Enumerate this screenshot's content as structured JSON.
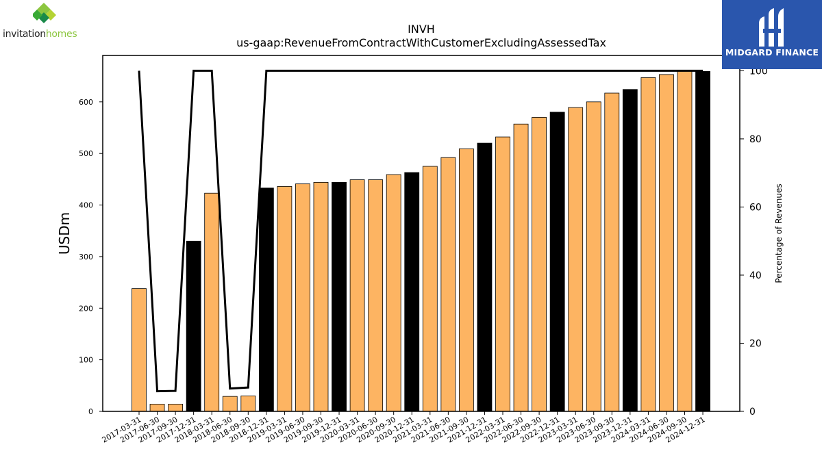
{
  "logo_left": {
    "word_main": "invitation",
    "word_accent": "homes"
  },
  "logo_right": {
    "brand": "MIDGARD FINANCE"
  },
  "colors": {
    "bar_regular": "#fdb462",
    "bar_q4": "#000000",
    "line": "#000000"
  },
  "chart_data": {
    "type": "bar",
    "title": "INVH",
    "subtitle": "us-gaap:RevenueFromContractWithCustomerExcludingAssessedTax",
    "ylabel": "USDm",
    "y2label": "Percentage of Revenues",
    "ylim": [
      0,
      690
    ],
    "y2lim": [
      0,
      104.5
    ],
    "yticks": [
      0,
      100,
      200,
      300,
      400,
      500,
      600
    ],
    "y2ticks": [
      0,
      20,
      40,
      60,
      80,
      100
    ],
    "categories": [
      "2017-03-31",
      "2017-06-30",
      "2017-09-30",
      "2017-12-31",
      "2018-03-31",
      "2018-06-30",
      "2018-09-30",
      "2018-12-31",
      "2019-03-31",
      "2019-06-30",
      "2019-09-30",
      "2019-12-31",
      "2020-03-31",
      "2020-06-30",
      "2020-09-30",
      "2020-12-31",
      "2021-03-31",
      "2021-06-30",
      "2021-09-30",
      "2021-12-31",
      "2022-03-31",
      "2022-06-30",
      "2022-09-30",
      "2022-12-31",
      "2023-03-31",
      "2023-06-30",
      "2023-09-30",
      "2023-12-31",
      "2024-03-31",
      "2024-06-30",
      "2024-09-30",
      "2024-12-31"
    ],
    "series": [
      {
        "axis": "left",
        "values": [
          238,
          14,
          14,
          330,
          423,
          29,
          30,
          433,
          436,
          441,
          444,
          444,
          449,
          449,
          459,
          463,
          475,
          492,
          509,
          520,
          532,
          557,
          570,
          580,
          589,
          600,
          617,
          624,
          647,
          653,
          661,
          659
        ],
        "highlight_q4": true
      },
      {
        "axis": "right",
        "type": "line",
        "values": [
          100,
          5.9,
          6.0,
          100,
          100,
          6.7,
          7.0,
          100,
          100,
          100,
          100,
          100,
          100,
          100,
          100,
          100,
          100,
          100,
          100,
          100,
          100,
          100,
          100,
          100,
          100,
          100,
          100,
          100,
          100,
          100,
          100,
          100
        ]
      }
    ],
    "grid": false,
    "legend": "none"
  }
}
